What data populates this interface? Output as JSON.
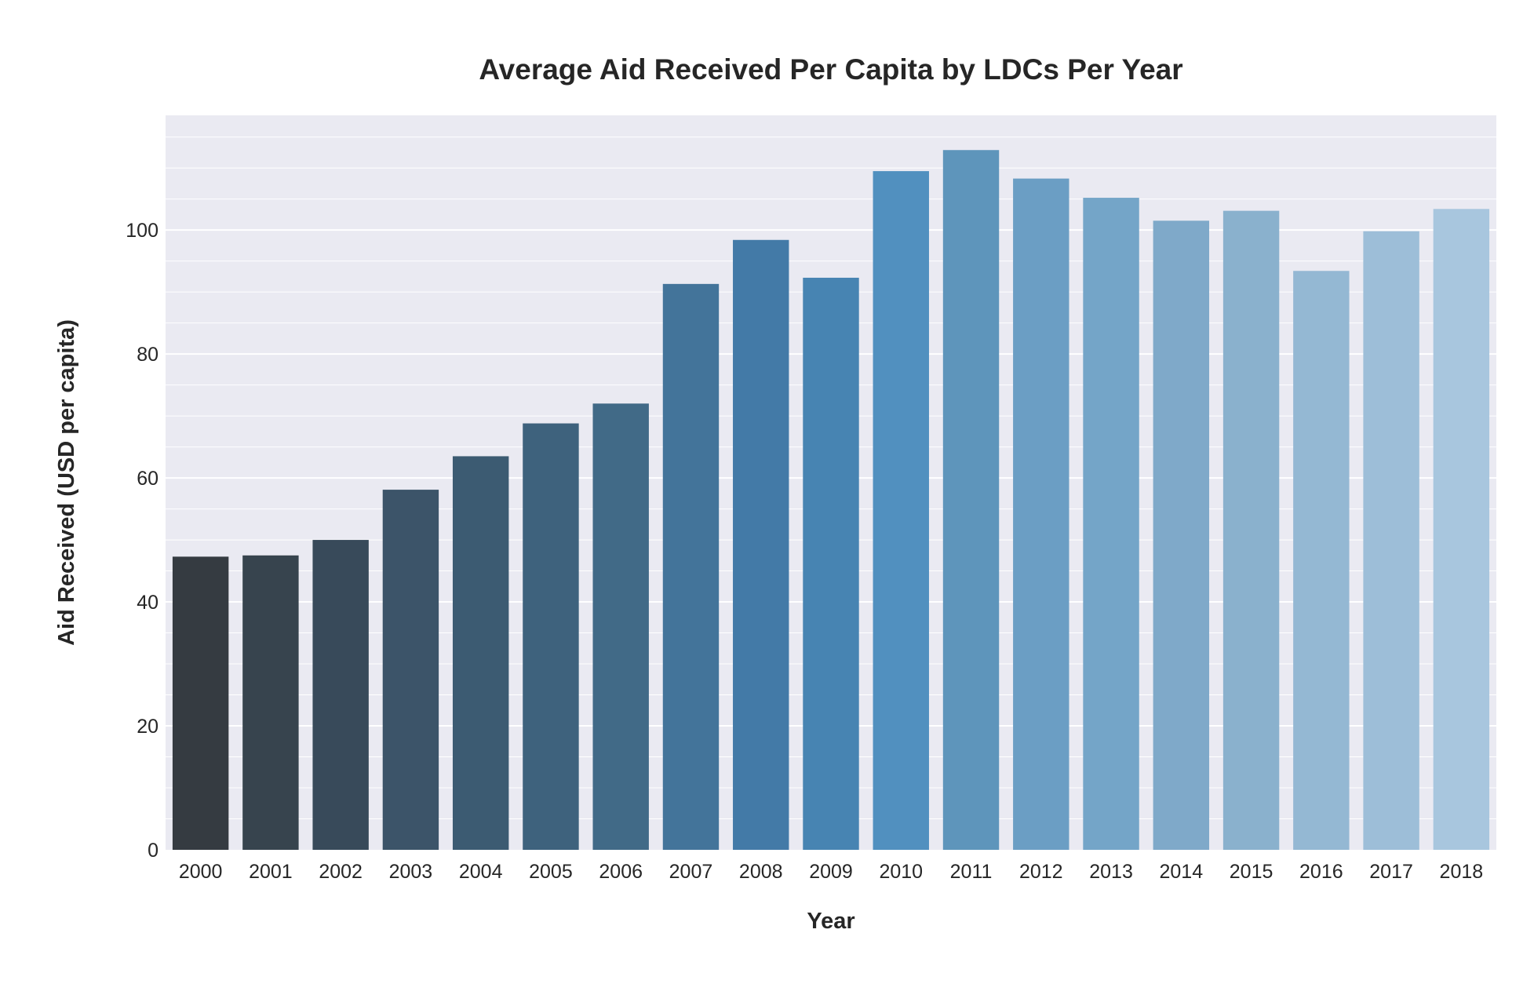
{
  "chart_data": {
    "type": "bar",
    "title": "Average Aid Received Per Capita by LDCs Per Year",
    "xlabel": "Year",
    "ylabel": "Aid Received (USD per capita)",
    "categories": [
      "2000",
      "2001",
      "2002",
      "2003",
      "2004",
      "2005",
      "2006",
      "2007",
      "2008",
      "2009",
      "2010",
      "2011",
      "2012",
      "2013",
      "2014",
      "2015",
      "2016",
      "2017",
      "2018"
    ],
    "values": [
      47.3,
      47.5,
      50.0,
      58.1,
      63.5,
      68.8,
      72.0,
      91.3,
      98.4,
      92.3,
      109.5,
      112.9,
      108.3,
      105.2,
      101.5,
      103.1,
      93.4,
      99.8,
      103.4
    ],
    "ylim": [
      0,
      118.5
    ],
    "yticks": [
      0,
      20,
      40,
      60,
      80,
      100
    ],
    "ytick_labels": [
      "0",
      "20",
      "40",
      "60",
      "80",
      "100"
    ],
    "minor_grid_step": 5,
    "grid": true,
    "legend": "none",
    "colors": [
      "#353b41",
      "#37444e",
      "#384a5a",
      "#3c5469",
      "#3c5b72",
      "#3e627d",
      "#416a87",
      "#43749a",
      "#437aa7",
      "#4784b2",
      "#5190bf",
      "#5e95bb",
      "#6b9ec4",
      "#74a5c8",
      "#7fa9c9",
      "#8ab1cd",
      "#94b8d3",
      "#9dbed8",
      "#a8c6de"
    ],
    "background": "#eaeaf2"
  }
}
